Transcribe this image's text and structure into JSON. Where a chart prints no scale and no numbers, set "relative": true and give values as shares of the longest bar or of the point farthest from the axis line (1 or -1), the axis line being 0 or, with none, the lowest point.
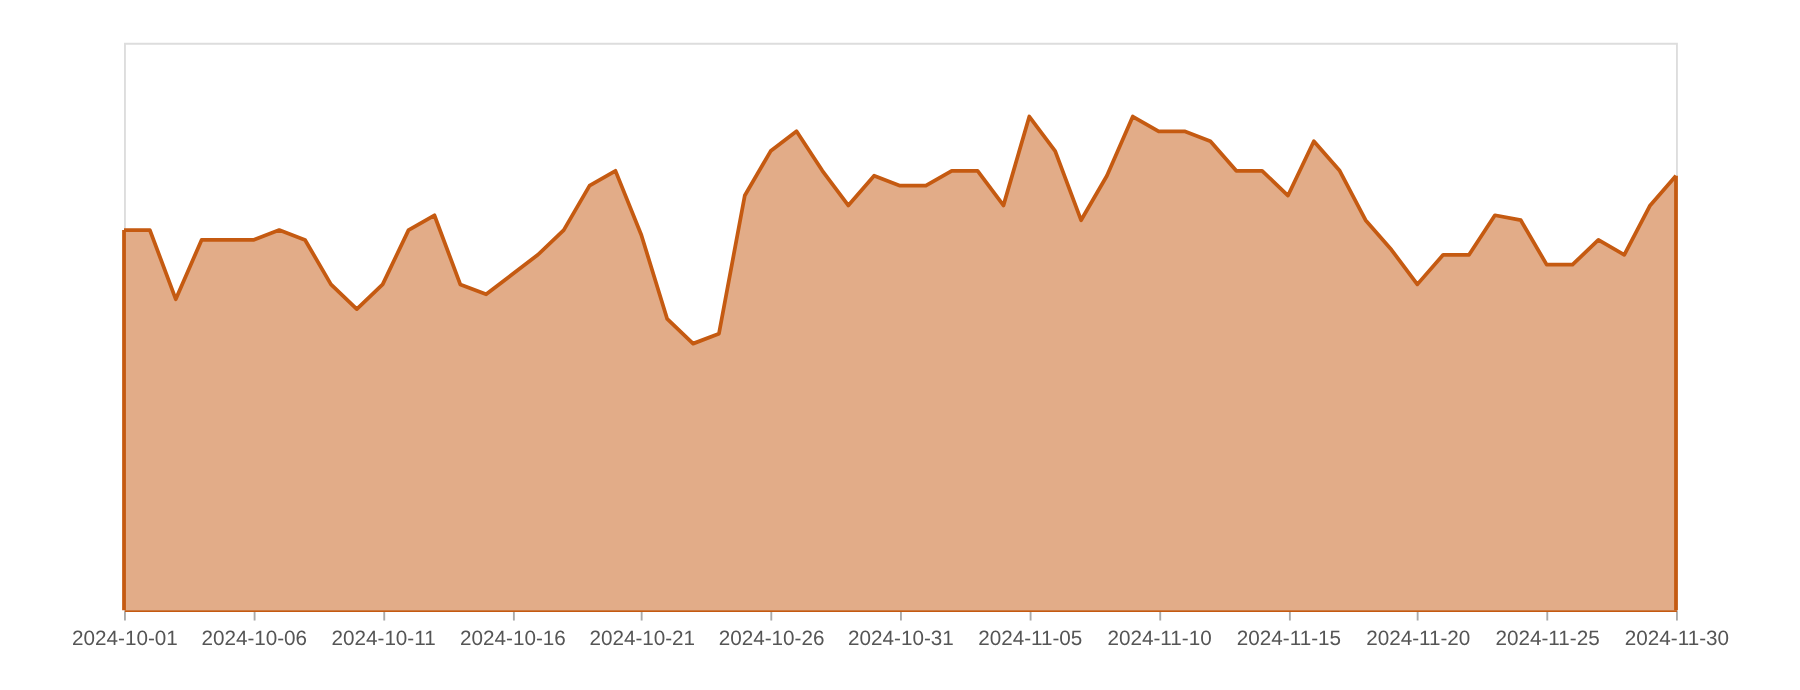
{
  "chart_data": {
    "type": "area",
    "relative": true,
    "x": [
      "2024-10-01",
      "2024-10-02",
      "2024-10-03",
      "2024-10-04",
      "2024-10-05",
      "2024-10-06",
      "2024-10-07",
      "2024-10-08",
      "2024-10-09",
      "2024-10-10",
      "2024-10-11",
      "2024-10-12",
      "2024-10-13",
      "2024-10-14",
      "2024-10-15",
      "2024-10-16",
      "2024-10-17",
      "2024-10-18",
      "2024-10-19",
      "2024-10-20",
      "2024-10-21",
      "2024-10-22",
      "2024-10-23",
      "2024-10-24",
      "2024-10-25",
      "2024-10-26",
      "2024-10-27",
      "2024-10-28",
      "2024-10-29",
      "2024-10-30",
      "2024-10-31",
      "2024-11-01",
      "2024-11-02",
      "2024-11-03",
      "2024-11-04",
      "2024-11-05",
      "2024-11-06",
      "2024-11-07",
      "2024-11-08",
      "2024-11-09",
      "2024-11-10",
      "2024-11-11",
      "2024-11-12",
      "2024-11-13",
      "2024-11-14",
      "2024-11-15",
      "2024-11-16",
      "2024-11-17",
      "2024-11-18",
      "2024-11-19",
      "2024-11-20",
      "2024-11-21",
      "2024-11-22",
      "2024-11-23",
      "2024-11-24",
      "2024-11-25",
      "2024-11-26",
      "2024-11-27",
      "2024-11-28",
      "2024-11-29",
      "2024-11-30"
    ],
    "series": [
      {
        "color": "#c55a11",
        "values": [
          0.77,
          0.77,
          0.63,
          0.75,
          0.75,
          0.75,
          0.77,
          0.75,
          0.66,
          0.61,
          0.66,
          0.77,
          0.8,
          0.66,
          0.64,
          0.68,
          0.72,
          0.77,
          0.86,
          0.89,
          0.76,
          0.59,
          0.54,
          0.56,
          0.84,
          0.93,
          0.97,
          0.89,
          0.82,
          0.88,
          0.86,
          0.86,
          0.89,
          0.89,
          0.82,
          1,
          0.93,
          0.79,
          0.88,
          1,
          0.97,
          0.97,
          0.95,
          0.89,
          0.89,
          0.84,
          0.95,
          0.89,
          0.79,
          0.73,
          0.66,
          0.72,
          0.72,
          0.8,
          0.79,
          0.7,
          0.7,
          0.75,
          0.72,
          0.82,
          0.88
        ]
      }
    ],
    "xlim": [
      "2024-10-01",
      "2024-11-30"
    ],
    "xticks": [
      "2024-10-01",
      "2024-10-06",
      "2024-10-11",
      "2024-10-16",
      "2024-10-21",
      "2024-10-26",
      "2024-10-31",
      "2024-11-05",
      "2024-11-10",
      "2024-11-15",
      "2024-11-20",
      "2024-11-25",
      "2024-11-30"
    ],
    "grid": false,
    "legend": false,
    "marker": "none",
    "line_style": "solid"
  }
}
